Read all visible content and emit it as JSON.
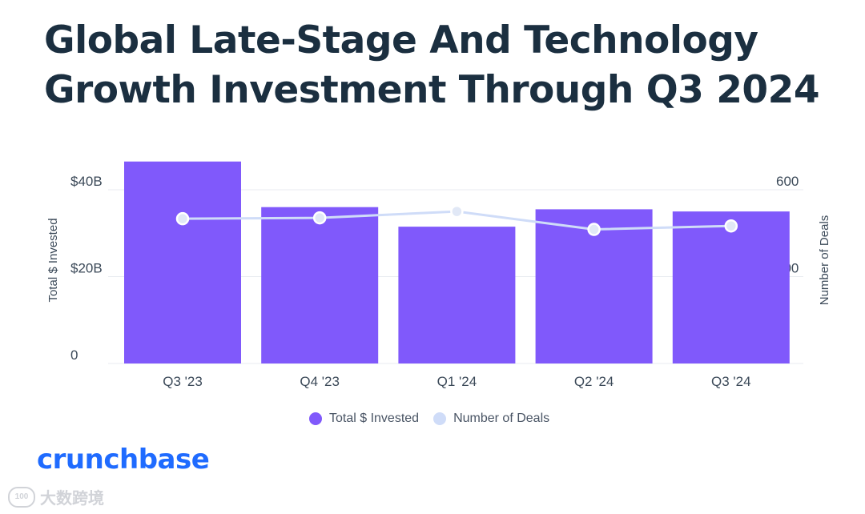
{
  "title_lines": [
    "Global Late-Stage And Technology",
    "Growth Investment Through Q3 2024"
  ],
  "colors": {
    "bar": "#8059fb",
    "line": "#cfdcf8",
    "point_fill": "#e1e8f6",
    "grid": "#e8ebf0",
    "axis_text": "#3c4a59",
    "logo": "#1f6bff"
  },
  "chart_data": {
    "type": "bar",
    "categories": [
      "Q3 '23",
      "Q4 '23",
      "Q1 '24",
      "Q2 '24",
      "Q3 '24"
    ],
    "series": [
      {
        "name": "Total $ Invested",
        "type": "bar",
        "axis": "left",
        "values": [
          46.5,
          36.0,
          31.5,
          35.5,
          35.0
        ]
      },
      {
        "name": "Number of Deals",
        "type": "line",
        "axis": "right",
        "values": [
          500,
          503,
          525,
          463,
          475
        ]
      }
    ],
    "ylabel": "Total $ Invested",
    "y2label": "Number of Deals",
    "left_ticks": [
      {
        "value": 0,
        "label": "0"
      },
      {
        "value": 20,
        "label": "$20B"
      },
      {
        "value": 40,
        "label": "$40B"
      }
    ],
    "right_ticks": [
      {
        "value": 0,
        "label": "0"
      },
      {
        "value": 300,
        "label": "300"
      },
      {
        "value": 600,
        "label": "600"
      }
    ],
    "ylim": [
      0,
      40
    ],
    "y2lim": [
      0,
      600
    ],
    "grid": true,
    "legend_position": "bottom-center"
  },
  "legend": [
    {
      "label": "Total $ Invested",
      "color": "#8059fb"
    },
    {
      "label": "Number of Deals",
      "color": "#cfdcf8"
    }
  ],
  "logo_text": "crunchbase",
  "watermark": {
    "mark": "100",
    "text": "大数跨境"
  }
}
